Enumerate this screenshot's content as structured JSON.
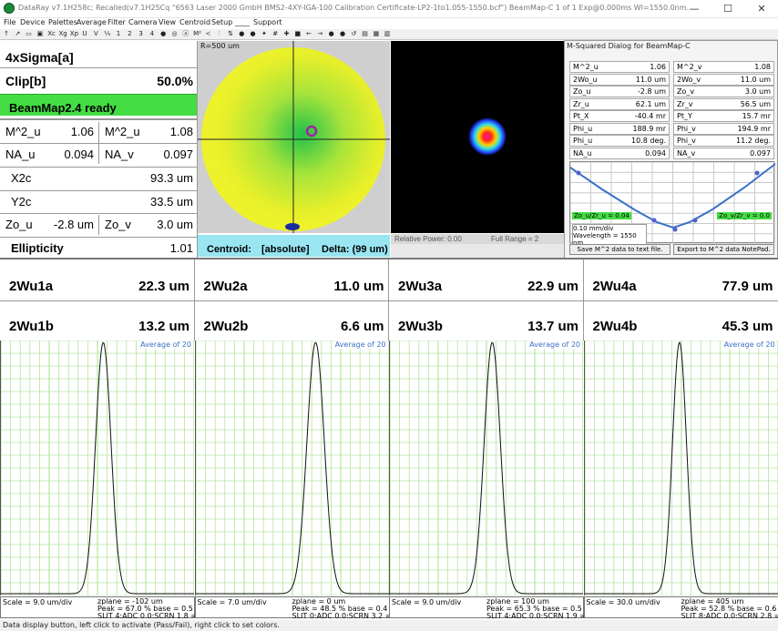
{
  "window": {
    "title": "DataRay v7.1H258c; Recalled(v7.1H25Cq \"6563 Laser 2000 GmbH BMS2-4XY-IGA-100 Calibration Certificate-LP2-1to1.055-1550.bcf\") BeamMap-C 1 of 1 Exp@0.000ms WI=1550.0nm.",
    "minimize": "—",
    "maximize": "☐",
    "close": "✕"
  },
  "menu": [
    "File",
    "Device",
    "Palettes",
    "Average",
    "Filter",
    "Camera",
    "View",
    "Centroid",
    "Setup",
    "____",
    "Support"
  ],
  "toolbar": [
    "↑",
    "↗",
    "▭",
    "▣",
    "Xc",
    "Xg",
    "Xp",
    "U",
    "V",
    "⅓",
    "1",
    "2",
    "3",
    "4",
    "●",
    "◎",
    "ⓐ",
    "M²",
    "≺",
    "⫶",
    "⇅",
    "●",
    "●",
    "✦",
    "#",
    "✚",
    "■",
    "←",
    "→",
    "●",
    "●",
    "↺",
    "▤",
    "▦",
    "▥"
  ],
  "left": {
    "mode": "4xSigma[a]",
    "clip": {
      "label": "Clip[b]",
      "value": "50.0%"
    },
    "ready": "BeamMap2.4 ready",
    "m2": {
      "ul": "M^2_u",
      "uv": "1.06",
      "vl": "M^2_u",
      "vv": "1.08"
    },
    "na": {
      "ul": "NA_u",
      "uv": "0.094",
      "vl": "NA_v",
      "vv": "0.097"
    },
    "x2c": {
      "label": "X2c",
      "value": "93.3 um"
    },
    "y2c": {
      "label": "Y2c",
      "value": "33.5 um"
    },
    "zo": {
      "ul": "Zo_u",
      "uv": "-2.8 um",
      "vl": "Zo_v",
      "vv": "3.0 um"
    },
    "ellip": {
      "label": "Ellipticity",
      "value": "1.01"
    }
  },
  "target": {
    "radius": "R=500 um"
  },
  "centroid": {
    "label": "Centroid:",
    "mode": "[absolute]",
    "delta": "Delta: (99 um)"
  },
  "power": {
    "rel": "Relative Power: 0.00",
    "range": "Full Range = 2"
  },
  "msq": {
    "title": "M-Squared Dialog for BeamMap-C",
    "rows": [
      [
        "M^2_u",
        "1.06",
        "M^2_v",
        "1.08"
      ],
      [
        "2Wo_u",
        "11.0 um",
        "2Wo_v",
        "11.0 um"
      ],
      [
        "Zo_u",
        "-2.8 um",
        "Zo_v",
        "3.0 um"
      ],
      [
        "Zr_u",
        "62.1 um",
        "Zr_v",
        "56.5 um"
      ],
      [
        "Pt_X",
        "-40.4 mr",
        "Pt_Y",
        "15.7 mr"
      ],
      [
        "Phi_u",
        "188.9 mr",
        "Phi_v",
        "194.9 mr"
      ],
      [
        "Phi_u",
        "10.8 deg.",
        "Phi_v",
        "11.2 deg."
      ],
      [
        "NA_u",
        "0.094",
        "NA_v",
        "0.097"
      ]
    ],
    "zl": "Zo_u/Zr_u = 0.04",
    "zr": "Zo_v/Zr_v = 0.0",
    "scale": "0.10 mm/div",
    "wl": "Wavelength = 1550 nm",
    "btn1": "Save M^2 data to text file.",
    "btn2": "Export to M^2 data NotePad."
  },
  "widths": [
    {
      "a": "2Wu1a",
      "av": "22.3 um",
      "b": "2Wu1b",
      "bv": "13.2 um"
    },
    {
      "a": "2Wu2a",
      "av": "11.0 um",
      "b": "2Wu2b",
      "bv": "6.6 um"
    },
    {
      "a": "2Wu3a",
      "av": "22.9 um",
      "b": "2Wu3b",
      "bv": "13.7 um"
    },
    {
      "a": "2Wu4a",
      "av": "77.9 um",
      "b": "2Wu4b",
      "bv": "45.3 um"
    }
  ],
  "profiles": [
    {
      "avg": "Average of 20",
      "scale": "Scale = 9.0 um/div",
      "z1": "zplane = -102 um",
      "z2": "Peak = 67.0 %  base = 0.5 %",
      "z3": "SLIT 4:ADC 0.0:SCRN 1.8 ="
    },
    {
      "avg": "Average of 20",
      "scale": "Scale = 7.0 um/div",
      "z1": "zplane = 0 um",
      "z2": "Peak = 48.5 %  base = 0.4 %",
      "z3": "SLIT 0:ADC 0.0:SCRN 3.2 ="
    },
    {
      "avg": "Average of 20",
      "scale": "Scale = 9.0 um/div",
      "z1": "zplane = 100 um",
      "z2": "Peak = 65.3 %  base = 0.5 %",
      "z3": "SLIT 4:ADC 0.0:SCRN 1.9 ="
    },
    {
      "avg": "Average of 20",
      "scale": "Scale = 30.0 um/div",
      "z1": "zplane = 405 um",
      "z2": "Peak = 52.8 %  base = 0.6 %",
      "z3": "SLIT 8:ADC 0.0:SCRN 2.8 ="
    }
  ],
  "status": "Data display button, left click to activate (Pass/Fail), right click to set colors.",
  "colors": {
    "green": "#44dd44",
    "cyan": "#99e5f2",
    "grid": "#b5e5a0",
    "accent": "#3a70c8"
  }
}
